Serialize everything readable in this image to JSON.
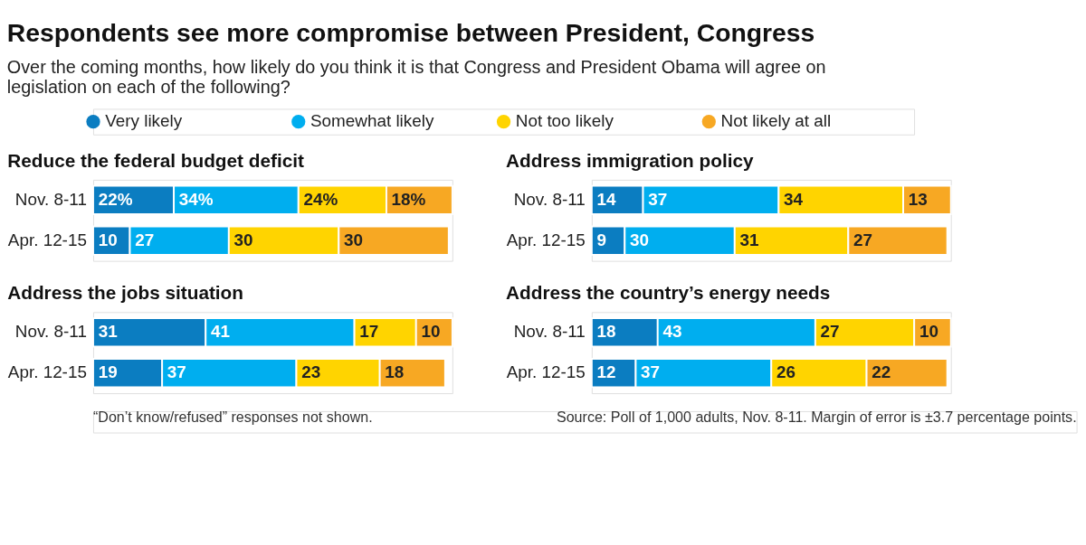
{
  "chart_data": [
    {
      "type": "other",
      "title": "Respondents see more compromise between President, Congress",
      "subtitle": "Over the coming months, how likely do you think it is that Congress and President Obama will agree on legislation on each of the following?",
      "annotations": [
        "“Don’t know/refused” responses not shown.",
        "Source: Poll of 1,000 adults, Nov. 8-11. Margin of error is ±3.7 percentage points."
      ]
    },
    {
      "type": "bar",
      "orientation": "horizontal",
      "stacked": true,
      "tick_labels": "y",
      "legend": "top",
      "title": "Reduce the federal budget deficit",
      "categories": [
        "Nov. 8-11",
        "Apr. 12-15"
      ],
      "series": [
        {
          "name": "Very likely",
          "color": "#0b7dc1",
          "values": [
            22,
            10
          ],
          "value_labels": [
            "22%",
            "10"
          ]
        },
        {
          "name": "Somewhat likely",
          "color": "#00aeef",
          "values": [
            34,
            27
          ],
          "value_labels": [
            "34%",
            "27"
          ]
        },
        {
          "name": "Not too likely",
          "color": "#ffd400",
          "values": [
            24,
            30
          ],
          "value_labels": [
            "24%",
            "30"
          ]
        },
        {
          "name": "Not likely at all",
          "color": "#f7a823",
          "values": [
            18,
            30
          ],
          "value_labels": [
            "18%",
            "30"
          ]
        }
      ]
    },
    {
      "type": "bar",
      "orientation": "horizontal",
      "stacked": true,
      "tick_labels": "y",
      "data_labels": true,
      "title": "Address immigration policy",
      "categories": [
        "Nov. 8-11",
        "Apr. 12-15"
      ],
      "series": [
        {
          "color": "#0b7dc1",
          "values": [
            14,
            9
          ]
        },
        {
          "color": "#00aeef",
          "values": [
            37,
            30
          ]
        },
        {
          "color": "#ffd400",
          "values": [
            34,
            31
          ]
        },
        {
          "color": "#f7a823",
          "values": [
            13,
            27
          ]
        }
      ]
    },
    {
      "type": "bar",
      "orientation": "horizontal",
      "stacked": true,
      "tick_labels": "y",
      "data_labels": true,
      "title": "Address the jobs situation",
      "categories": [
        "Nov. 8-11",
        "Apr. 12-15"
      ],
      "series": [
        {
          "color": "#0b7dc1",
          "values": [
            31,
            19
          ]
        },
        {
          "color": "#00aeef",
          "values": [
            41,
            37
          ]
        },
        {
          "color": "#ffd400",
          "values": [
            17,
            23
          ]
        },
        {
          "color": "#f7a823",
          "values": [
            10,
            18
          ]
        }
      ]
    },
    {
      "type": "bar",
      "orientation": "horizontal",
      "stacked": true,
      "tick_labels": "y",
      "data_labels": true,
      "title": "Address the country’s energy needs",
      "categories": [
        "Nov. 8-11",
        "Apr. 12-15"
      ],
      "series": [
        {
          "color": "#0b7dc1",
          "values": [
            18,
            12
          ]
        },
        {
          "color": "#00aeef",
          "values": [
            43,
            37
          ]
        },
        {
          "color": "#ffd400",
          "values": [
            27,
            26
          ]
        },
        {
          "color": "#f7a823",
          "values": [
            10,
            22
          ]
        }
      ]
    }
  ]
}
